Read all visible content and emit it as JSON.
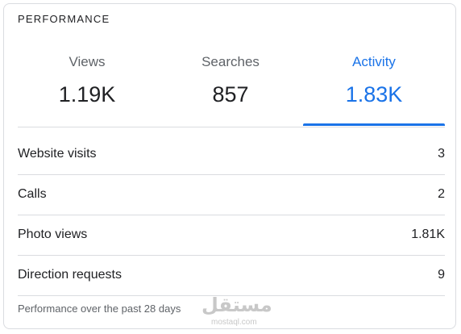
{
  "header": {
    "title": "PERFORMANCE"
  },
  "tabs": [
    {
      "label": "Views",
      "value": "1.19K",
      "active": false
    },
    {
      "label": "Searches",
      "value": "857",
      "active": false
    },
    {
      "label": "Activity",
      "value": "1.83K",
      "active": true
    }
  ],
  "rows": [
    {
      "label": "Website visits",
      "value": "3"
    },
    {
      "label": "Calls",
      "value": "2"
    },
    {
      "label": "Photo views",
      "value": "1.81K"
    },
    {
      "label": "Direction requests",
      "value": "9"
    }
  ],
  "footer": "Performance over the past 28 days",
  "watermark": {
    "name": "مستقل",
    "site": "mostaql.com"
  }
}
